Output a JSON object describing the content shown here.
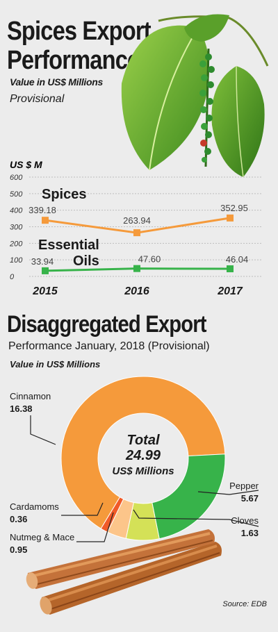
{
  "header": {
    "title_line1": "Spices Export",
    "title_line2": "Performance",
    "subtitle": "Value in US$ Millions",
    "note": "Provisional"
  },
  "section2": {
    "title": "Disaggregated Export",
    "subtitle": "Performance January, 2018 (Provisional)",
    "unit": "Value in US$ Millions"
  },
  "source": "Source: EDB",
  "colors": {
    "orange": "#f59a3b",
    "green": "#37b34a",
    "light_green": "#d4e157",
    "peach": "#fcc58a",
    "red_orange": "#f05a28",
    "background": "#ececec"
  },
  "chart_data": [
    {
      "type": "line",
      "ylabel": "US $ M",
      "x": [
        "2015",
        "2016",
        "2017"
      ],
      "ylim": [
        0,
        600
      ],
      "yticks": [
        "0",
        "100",
        "200",
        "300",
        "400",
        "500",
        "600"
      ],
      "grid": true,
      "series": [
        {
          "name": "Spices",
          "values": [
            339.18,
            263.94,
            352.95
          ],
          "labels": [
            "339.18",
            "263.94",
            "352.95"
          ],
          "color": "#f59a3b"
        },
        {
          "name": "Essential Oils",
          "name_line1": "Essential",
          "name_line2": "Oils",
          "values": [
            33.94,
            47.6,
            46.04
          ],
          "labels": [
            "33.94",
            "47.60",
            "46.04"
          ],
          "color": "#37b34a"
        }
      ]
    },
    {
      "type": "pie",
      "title": "Disaggregated Export",
      "center_label": {
        "line1": "Total",
        "line2": "24.99",
        "line3": "US$ Millions"
      },
      "slices": [
        {
          "name": "Cinnamon",
          "value": 16.38,
          "label": "16.38",
          "color": "#f59a3b"
        },
        {
          "name": "Pepper",
          "value": 5.67,
          "label": "5.67",
          "color": "#37b34a"
        },
        {
          "name": "Cloves",
          "value": 1.63,
          "label": "1.63",
          "color": "#d4e157"
        },
        {
          "name": "Nutmeg & Mace",
          "value": 0.95,
          "label": "0.95",
          "color": "#fcc58a"
        },
        {
          "name": "Cardamoms",
          "value": 0.36,
          "label": "0.36",
          "color": "#f05a28"
        }
      ]
    }
  ]
}
